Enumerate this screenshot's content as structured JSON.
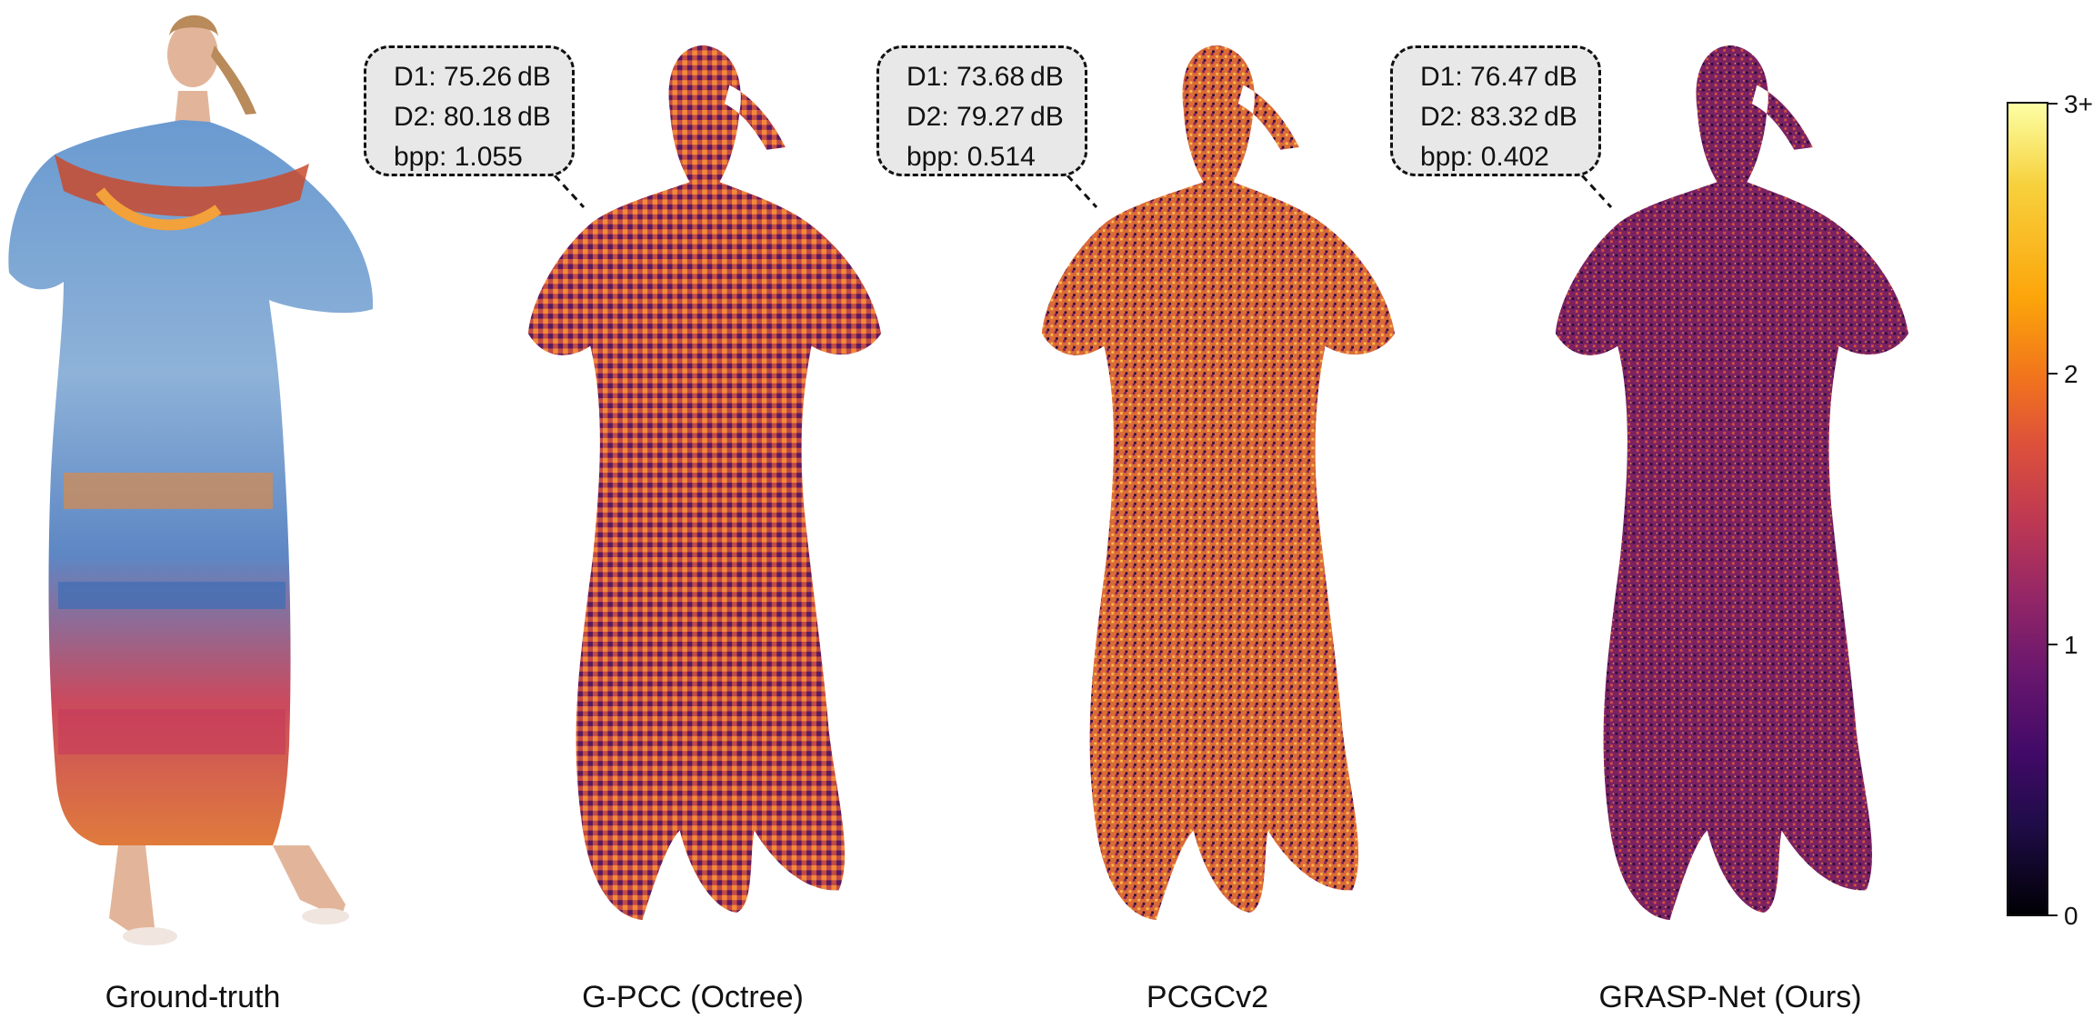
{
  "panels": [
    {
      "caption": "Ground-truth"
    },
    {
      "caption": "G-PCC (Octree)",
      "metrics": {
        "d1": "D1: 75.26 dB",
        "d2": "D2: 80.18 dB",
        "bpp": "bpp: 1.055"
      }
    },
    {
      "caption": "PCGCv2",
      "metrics": {
        "d1": "D1: 73.68 dB",
        "d2": "D2: 79.27 dB",
        "bpp": "bpp: 0.514"
      }
    },
    {
      "caption": "GRASP-Net (Ours)",
      "metrics": {
        "d1": "D1: 76.47 dB",
        "d2": "D2: 83.32 dB",
        "bpp": "bpp: 0.402"
      }
    }
  ],
  "colorbar": {
    "colormap": "inferno",
    "ticks": [
      "0",
      "1",
      "2",
      "3+"
    ],
    "colors": {
      "low": "#000004",
      "mid": "#bc3754",
      "high": "#fcffa4"
    }
  },
  "error_map_tints": {
    "G-PCC (Octree)": "#c8503f",
    "PCGCv2": "#d66a3a",
    "GRASP-Net (Ours)": "#7a2260"
  }
}
